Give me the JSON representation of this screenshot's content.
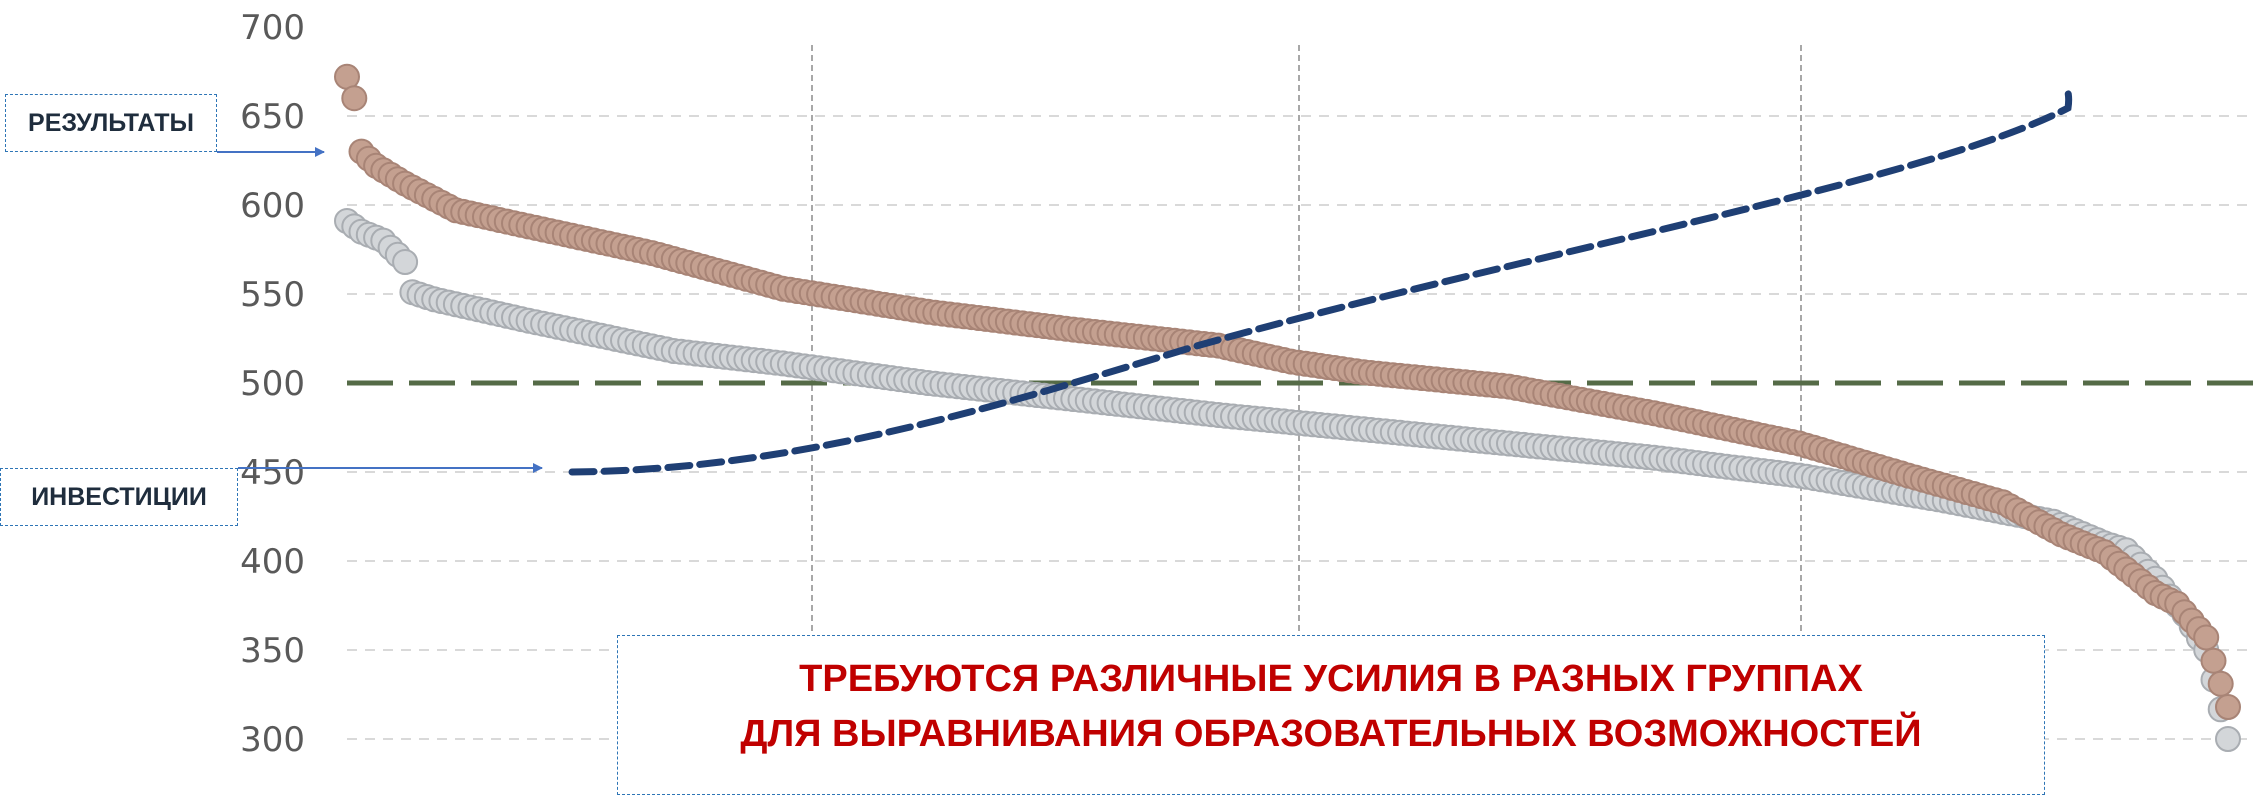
{
  "chart_data": {
    "type": "scatter",
    "title": "",
    "xlabel": "",
    "ylabel": "",
    "ylim": [
      300,
      700
    ],
    "yticks": [
      "700",
      "650",
      "600",
      "550",
      "500",
      "450",
      "400",
      "350",
      "300"
    ],
    "grid": true,
    "point_count": 260,
    "series": [
      {
        "color": "#c4a090",
        "stroke": "#a88476",
        "key_x": [
          0,
          1,
          2,
          4,
          8,
          15,
          25,
          42,
          60,
          80,
          100,
          120,
          130,
          140,
          160,
          180,
          200,
          215,
          228,
          236,
          242,
          246,
          249,
          252,
          256,
          259
        ],
        "key_y": [
          672,
          660,
          630,
          622,
          612,
          597,
          588,
          573,
          553,
          540,
          530,
          521,
          512,
          506,
          498,
          483,
          466,
          448,
          433,
          415,
          405,
          392,
          382,
          376,
          357,
          318
        ]
      },
      {
        "color": "#d3d6d9",
        "stroke": "#a9adb2",
        "key_x": [
          0,
          2,
          5,
          8,
          9,
          12,
          25,
          45,
          60,
          80,
          100,
          120,
          140,
          160,
          180,
          200,
          220,
          235,
          242,
          245,
          249,
          253,
          256,
          259
        ],
        "key_y": [
          591,
          585,
          580,
          568,
          551,
          547,
          535,
          518,
          511,
          500,
          491,
          482,
          474,
          466,
          458,
          448,
          434,
          422,
          410,
          406,
          390,
          370,
          350,
          300
        ]
      }
    ],
    "reference_line": {
      "y": 500,
      "color": "#556b47",
      "style": "dashed"
    },
    "investment_curve": {
      "color": "#1f3f74",
      "style": "dashed"
    },
    "vertical_dividers": 3,
    "callouts": {
      "results": "РЕЗУЛЬТАТЫ",
      "investments": "ИНВЕСТИЦИИ",
      "message_line1": "ТРЕБУЮТСЯ РАЗЛИЧНЫЕ УСИЛИЯ В РАЗНЫХ ГРУППАХ",
      "message_line2": "ДЛЯ ВЫРАВНИВАНИЯ ОБРАЗОВАТЕЛЬНЫХ ВОЗМОЖНОСТЕЙ"
    },
    "arrow_color": "#4472c4"
  }
}
